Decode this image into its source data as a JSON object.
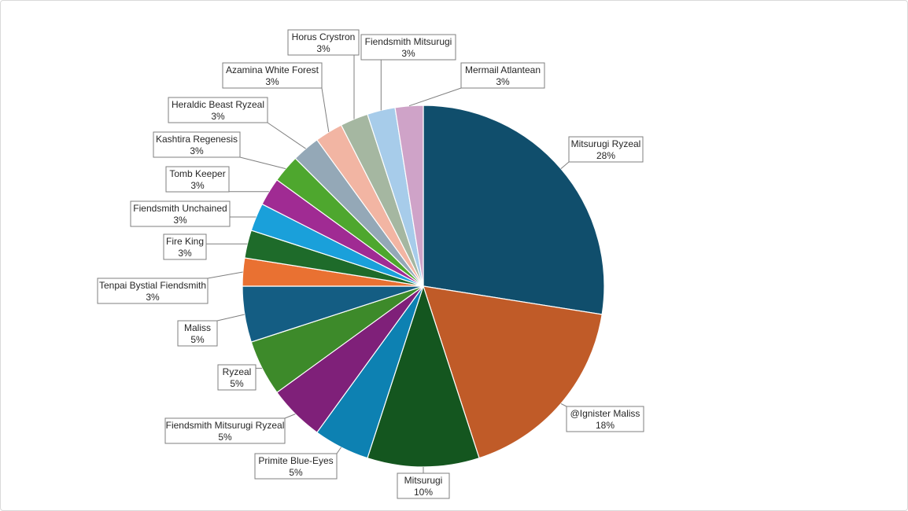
{
  "chart_data": {
    "type": "pie",
    "title": "",
    "slices": [
      {
        "label": "Mitsurugi Ryzeal",
        "pct_text": "28%",
        "value": 27.5,
        "color": "#104E6C"
      },
      {
        "label": "@Ignister Maliss",
        "pct_text": "18%",
        "value": 17.5,
        "color": "#C05B28"
      },
      {
        "label": "Mitsurugi",
        "pct_text": "10%",
        "value": 10.0,
        "color": "#14561F"
      },
      {
        "label": "Primite Blue-Eyes",
        "pct_text": "5%",
        "value": 5.0,
        "color": "#0D81B2"
      },
      {
        "label": "Fiendsmith Mitsurugi Ryzeal",
        "pct_text": "5%",
        "value": 5.0,
        "color": "#7F2079"
      },
      {
        "label": "Ryzeal",
        "pct_text": "5%",
        "value": 5.0,
        "color": "#3D8A2A"
      },
      {
        "label": "Maliss",
        "pct_text": "5%",
        "value": 5.0,
        "color": "#145D83"
      },
      {
        "label": "Tenpai Bystial Fiendsmith",
        "pct_text": "3%",
        "value": 2.5,
        "color": "#E97132"
      },
      {
        "label": "Fire King",
        "pct_text": "3%",
        "value": 2.5,
        "color": "#1E6B2A"
      },
      {
        "label": "Fiendsmith Unchained",
        "pct_text": "3%",
        "value": 2.5,
        "color": "#1AA0DA"
      },
      {
        "label": "Tomb Keeper",
        "pct_text": "3%",
        "value": 2.5,
        "color": "#A02B93"
      },
      {
        "label": "Kashtira Regenesis",
        "pct_text": "3%",
        "value": 2.5,
        "color": "#4EA72E"
      },
      {
        "label": "Heraldic Beast Ryzeal",
        "pct_text": "3%",
        "value": 2.5,
        "color": "#94A8B7"
      },
      {
        "label": "Azamina White Forest",
        "pct_text": "3%",
        "value": 2.5,
        "color": "#F2B5A3"
      },
      {
        "label": "Horus Crystron",
        "pct_text": "3%",
        "value": 2.5,
        "color": "#A5B7A1"
      },
      {
        "label": "Fiendsmith Mitsurugi",
        "pct_text": "3%",
        "value": 2.5,
        "color": "#A7CCEA"
      },
      {
        "label": "Mermail Atlantean",
        "pct_text": "3%",
        "value": 2.5,
        "color": "#CFA3C8"
      }
    ],
    "legend": "none",
    "data_labels": "callouts with category name and percentage"
  }
}
